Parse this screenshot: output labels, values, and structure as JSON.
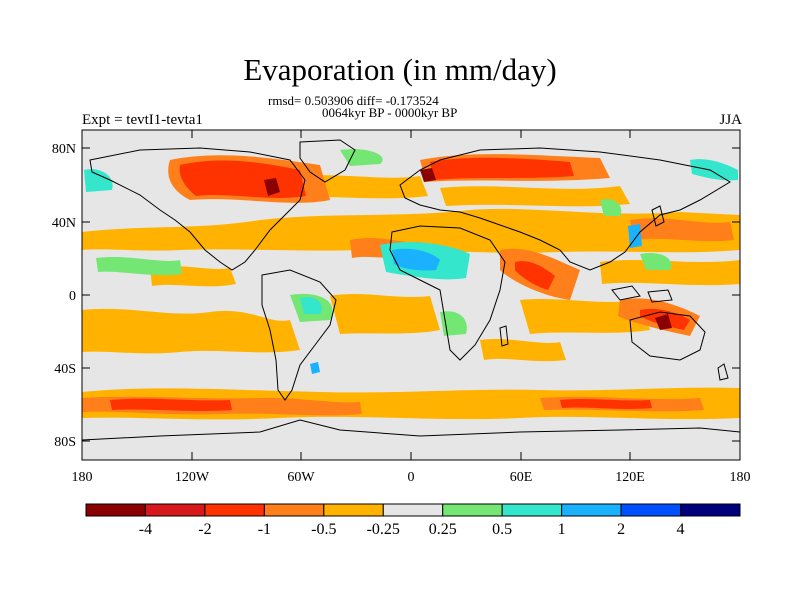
{
  "title": "Evaporation (in mm/day)",
  "stats": "rmsd= 0.503906 diff= -0.173524",
  "period": "0064kyr BP - 0000kyr BP",
  "experiment": "Expt = tevtI1-tevta1",
  "season": "JJA",
  "lat_ticks": [
    "80N",
    "40N",
    "0",
    "40S",
    "80S"
  ],
  "lon_ticks": [
    "180",
    "120W",
    "60W",
    "0",
    "60E",
    "120E",
    "180"
  ],
  "colorbar": {
    "labels": [
      "-4",
      "-2",
      "-1",
      "-0.5",
      "-0.25",
      "0.25",
      "0.5",
      "1",
      "2",
      "4"
    ],
    "colors": [
      "#8b0000",
      "#d7191c",
      "#ff3300",
      "#ff7f1a",
      "#ffb300",
      "#e6e6e6",
      "#73e673",
      "#33e6cc",
      "#1ab2ff",
      "#0050ff",
      "#00007f"
    ]
  },
  "colors": {
    "ocean_background": "#e6e6e6",
    "coast": "#000000"
  }
}
